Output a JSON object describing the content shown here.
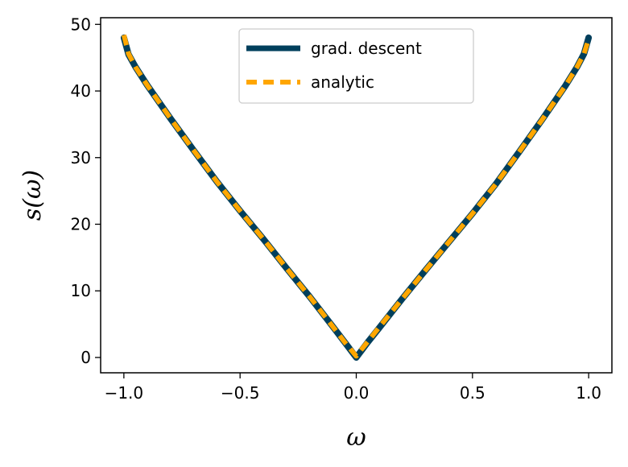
{
  "chart_data": {
    "type": "line",
    "title": "",
    "xlabel": "ω",
    "ylabel": "s(ω)",
    "xlim": [
      -1.1,
      1.1
    ],
    "ylim": [
      -2.3,
      51
    ],
    "xticks": [
      -1.0,
      -0.5,
      0.0,
      0.5,
      1.0
    ],
    "xtick_labels": [
      "−1.0",
      "−0.5",
      "0.0",
      "0.5",
      "1.0"
    ],
    "yticks": [
      0,
      10,
      20,
      30,
      40,
      50
    ],
    "ytick_labels": [
      "0",
      "10",
      "20",
      "30",
      "40",
      "50"
    ],
    "grid": false,
    "legend_position": "top-center",
    "series": [
      {
        "name": "grad. descent",
        "color": "#003f5c",
        "style": "solid",
        "x": [
          -1.0,
          -0.98,
          -0.95,
          -0.9,
          -0.8,
          -0.7,
          -0.6,
          -0.5,
          -0.4,
          -0.3,
          -0.2,
          -0.1,
          -0.05,
          0.0,
          0.05,
          0.1,
          0.2,
          0.3,
          0.4,
          0.5,
          0.6,
          0.7,
          0.8,
          0.9,
          0.95,
          0.98,
          1.0
        ],
        "y": [
          48.0,
          45.5,
          43.6,
          40.9,
          35.9,
          31.1,
          26.4,
          22.0,
          17.8,
          13.4,
          9.1,
          4.6,
          2.3,
          0.0,
          2.3,
          4.5,
          8.9,
          13.2,
          17.4,
          21.6,
          26.0,
          30.8,
          35.7,
          40.8,
          43.6,
          45.6,
          48.0
        ]
      },
      {
        "name": "analytic",
        "color": "#ffa600",
        "style": "dashed",
        "x": [
          -1.0,
          -0.98,
          -0.95,
          -0.9,
          -0.8,
          -0.7,
          -0.6,
          -0.5,
          -0.4,
          -0.3,
          -0.2,
          -0.1,
          -0.05,
          0.0,
          0.05,
          0.1,
          0.2,
          0.3,
          0.4,
          0.5,
          0.6,
          0.7,
          0.8,
          0.9,
          0.95,
          0.98,
          1.0
        ],
        "y": [
          48.4,
          45.6,
          43.6,
          40.9,
          35.9,
          31.1,
          26.4,
          22.0,
          17.8,
          13.4,
          9.1,
          4.6,
          2.3,
          0.2,
          2.4,
          4.6,
          8.9,
          13.2,
          17.4,
          21.6,
          26.0,
          30.8,
          35.7,
          40.8,
          43.6,
          45.6,
          47.8
        ]
      }
    ]
  }
}
